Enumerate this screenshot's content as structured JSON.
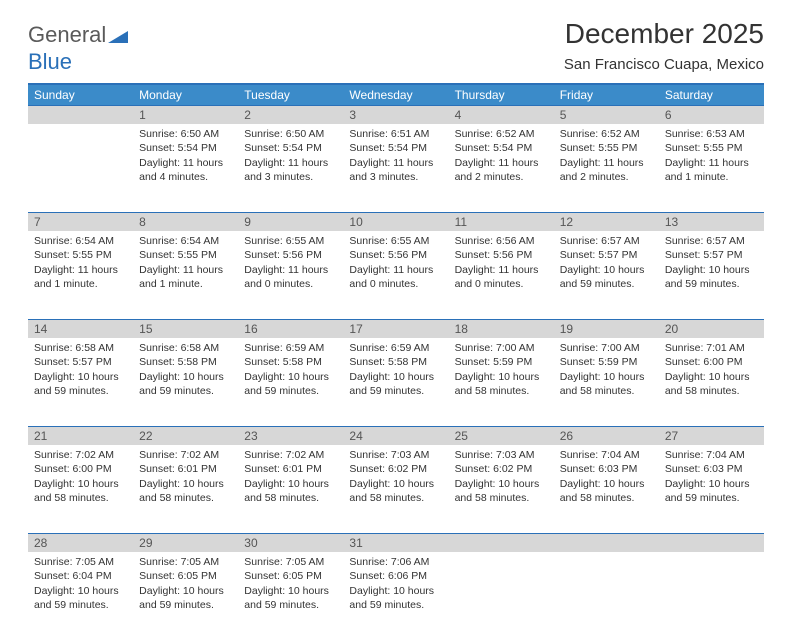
{
  "brand": {
    "part1": "General",
    "part2": "Blue"
  },
  "title": "December 2025",
  "location": "San Francisco Cuapa, Mexico",
  "colors": {
    "header_bg": "#3b8bc9",
    "header_border": "#2a70b8",
    "daynum_bg": "#d7d7d7",
    "text": "#333333"
  },
  "weekdays": [
    "Sunday",
    "Monday",
    "Tuesday",
    "Wednesday",
    "Thursday",
    "Friday",
    "Saturday"
  ],
  "weeks": [
    [
      {
        "n": "",
        "lines": []
      },
      {
        "n": "1",
        "lines": [
          "Sunrise: 6:50 AM",
          "Sunset: 5:54 PM",
          "Daylight: 11 hours",
          "and 4 minutes."
        ]
      },
      {
        "n": "2",
        "lines": [
          "Sunrise: 6:50 AM",
          "Sunset: 5:54 PM",
          "Daylight: 11 hours",
          "and 3 minutes."
        ]
      },
      {
        "n": "3",
        "lines": [
          "Sunrise: 6:51 AM",
          "Sunset: 5:54 PM",
          "Daylight: 11 hours",
          "and 3 minutes."
        ]
      },
      {
        "n": "4",
        "lines": [
          "Sunrise: 6:52 AM",
          "Sunset: 5:54 PM",
          "Daylight: 11 hours",
          "and 2 minutes."
        ]
      },
      {
        "n": "5",
        "lines": [
          "Sunrise: 6:52 AM",
          "Sunset: 5:55 PM",
          "Daylight: 11 hours",
          "and 2 minutes."
        ]
      },
      {
        "n": "6",
        "lines": [
          "Sunrise: 6:53 AM",
          "Sunset: 5:55 PM",
          "Daylight: 11 hours",
          "and 1 minute."
        ]
      }
    ],
    [
      {
        "n": "7",
        "lines": [
          "Sunrise: 6:54 AM",
          "Sunset: 5:55 PM",
          "Daylight: 11 hours",
          "and 1 minute."
        ]
      },
      {
        "n": "8",
        "lines": [
          "Sunrise: 6:54 AM",
          "Sunset: 5:55 PM",
          "Daylight: 11 hours",
          "and 1 minute."
        ]
      },
      {
        "n": "9",
        "lines": [
          "Sunrise: 6:55 AM",
          "Sunset: 5:56 PM",
          "Daylight: 11 hours",
          "and 0 minutes."
        ]
      },
      {
        "n": "10",
        "lines": [
          "Sunrise: 6:55 AM",
          "Sunset: 5:56 PM",
          "Daylight: 11 hours",
          "and 0 minutes."
        ]
      },
      {
        "n": "11",
        "lines": [
          "Sunrise: 6:56 AM",
          "Sunset: 5:56 PM",
          "Daylight: 11 hours",
          "and 0 minutes."
        ]
      },
      {
        "n": "12",
        "lines": [
          "Sunrise: 6:57 AM",
          "Sunset: 5:57 PM",
          "Daylight: 10 hours",
          "and 59 minutes."
        ]
      },
      {
        "n": "13",
        "lines": [
          "Sunrise: 6:57 AM",
          "Sunset: 5:57 PM",
          "Daylight: 10 hours",
          "and 59 minutes."
        ]
      }
    ],
    [
      {
        "n": "14",
        "lines": [
          "Sunrise: 6:58 AM",
          "Sunset: 5:57 PM",
          "Daylight: 10 hours",
          "and 59 minutes."
        ]
      },
      {
        "n": "15",
        "lines": [
          "Sunrise: 6:58 AM",
          "Sunset: 5:58 PM",
          "Daylight: 10 hours",
          "and 59 minutes."
        ]
      },
      {
        "n": "16",
        "lines": [
          "Sunrise: 6:59 AM",
          "Sunset: 5:58 PM",
          "Daylight: 10 hours",
          "and 59 minutes."
        ]
      },
      {
        "n": "17",
        "lines": [
          "Sunrise: 6:59 AM",
          "Sunset: 5:58 PM",
          "Daylight: 10 hours",
          "and 59 minutes."
        ]
      },
      {
        "n": "18",
        "lines": [
          "Sunrise: 7:00 AM",
          "Sunset: 5:59 PM",
          "Daylight: 10 hours",
          "and 58 minutes."
        ]
      },
      {
        "n": "19",
        "lines": [
          "Sunrise: 7:00 AM",
          "Sunset: 5:59 PM",
          "Daylight: 10 hours",
          "and 58 minutes."
        ]
      },
      {
        "n": "20",
        "lines": [
          "Sunrise: 7:01 AM",
          "Sunset: 6:00 PM",
          "Daylight: 10 hours",
          "and 58 minutes."
        ]
      }
    ],
    [
      {
        "n": "21",
        "lines": [
          "Sunrise: 7:02 AM",
          "Sunset: 6:00 PM",
          "Daylight: 10 hours",
          "and 58 minutes."
        ]
      },
      {
        "n": "22",
        "lines": [
          "Sunrise: 7:02 AM",
          "Sunset: 6:01 PM",
          "Daylight: 10 hours",
          "and 58 minutes."
        ]
      },
      {
        "n": "23",
        "lines": [
          "Sunrise: 7:02 AM",
          "Sunset: 6:01 PM",
          "Daylight: 10 hours",
          "and 58 minutes."
        ]
      },
      {
        "n": "24",
        "lines": [
          "Sunrise: 7:03 AM",
          "Sunset: 6:02 PM",
          "Daylight: 10 hours",
          "and 58 minutes."
        ]
      },
      {
        "n": "25",
        "lines": [
          "Sunrise: 7:03 AM",
          "Sunset: 6:02 PM",
          "Daylight: 10 hours",
          "and 58 minutes."
        ]
      },
      {
        "n": "26",
        "lines": [
          "Sunrise: 7:04 AM",
          "Sunset: 6:03 PM",
          "Daylight: 10 hours",
          "and 58 minutes."
        ]
      },
      {
        "n": "27",
        "lines": [
          "Sunrise: 7:04 AM",
          "Sunset: 6:03 PM",
          "Daylight: 10 hours",
          "and 59 minutes."
        ]
      }
    ],
    [
      {
        "n": "28",
        "lines": [
          "Sunrise: 7:05 AM",
          "Sunset: 6:04 PM",
          "Daylight: 10 hours",
          "and 59 minutes."
        ]
      },
      {
        "n": "29",
        "lines": [
          "Sunrise: 7:05 AM",
          "Sunset: 6:05 PM",
          "Daylight: 10 hours",
          "and 59 minutes."
        ]
      },
      {
        "n": "30",
        "lines": [
          "Sunrise: 7:05 AM",
          "Sunset: 6:05 PM",
          "Daylight: 10 hours",
          "and 59 minutes."
        ]
      },
      {
        "n": "31",
        "lines": [
          "Sunrise: 7:06 AM",
          "Sunset: 6:06 PM",
          "Daylight: 10 hours",
          "and 59 minutes."
        ]
      },
      {
        "n": "",
        "lines": []
      },
      {
        "n": "",
        "lines": []
      },
      {
        "n": "",
        "lines": []
      }
    ]
  ]
}
